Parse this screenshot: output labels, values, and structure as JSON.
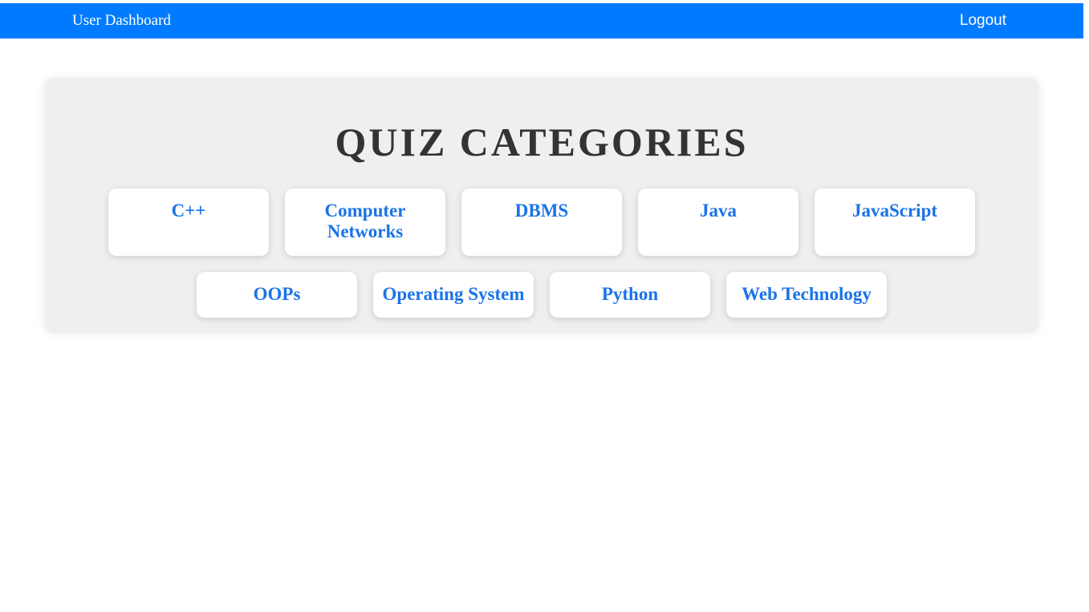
{
  "navbar": {
    "brand": "User Dashboard",
    "logout": "Logout",
    "background_color": "#007bff"
  },
  "main": {
    "title": "QUIZ CATEGORIES",
    "categories": [
      "C++",
      "Computer Networks",
      "DBMS",
      "Java",
      "JavaScript",
      "OOPs",
      "Operating System",
      "Python",
      "Web Technology"
    ],
    "link_color": "#1a73e8",
    "panel_color": "#efefef"
  }
}
